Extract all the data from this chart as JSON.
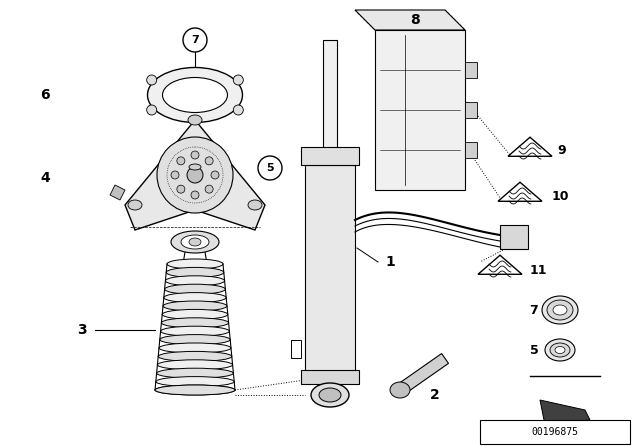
{
  "background_color": "#ffffff",
  "image_number": "00196875",
  "fig_width": 6.4,
  "fig_height": 4.48,
  "dpi": 100
}
